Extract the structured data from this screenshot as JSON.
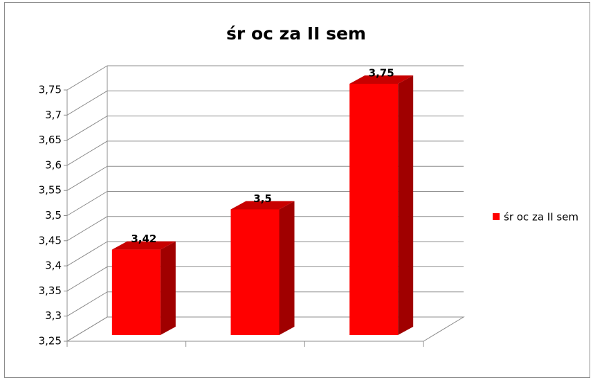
{
  "chart_data": {
    "type": "bar3d",
    "title": "śr oc za II sem",
    "categories": [
      null,
      null,
      null
    ],
    "series": [
      {
        "name": "śr oc za II sem",
        "color": "#ff0000",
        "values": [
          3.42,
          3.5,
          3.75
        ],
        "value_labels": [
          "3,42",
          "3,5",
          "3,75"
        ]
      }
    ],
    "ylim": [
      3.25,
      3.75
    ],
    "yticks": [
      {
        "value": 3.25,
        "label": "3,25"
      },
      {
        "value": 3.3,
        "label": "3,3"
      },
      {
        "value": 3.35,
        "label": "3,35"
      },
      {
        "value": 3.4,
        "label": "3,4"
      },
      {
        "value": 3.45,
        "label": "3,45"
      },
      {
        "value": 3.5,
        "label": "3,5"
      },
      {
        "value": 3.55,
        "label": "3,55"
      },
      {
        "value": 3.6,
        "label": "3,6"
      },
      {
        "value": 3.65,
        "label": "3,65"
      },
      {
        "value": 3.7,
        "label": "3,7"
      },
      {
        "value": 3.75,
        "label": "3,75"
      }
    ],
    "grid": true,
    "legend": "right"
  }
}
